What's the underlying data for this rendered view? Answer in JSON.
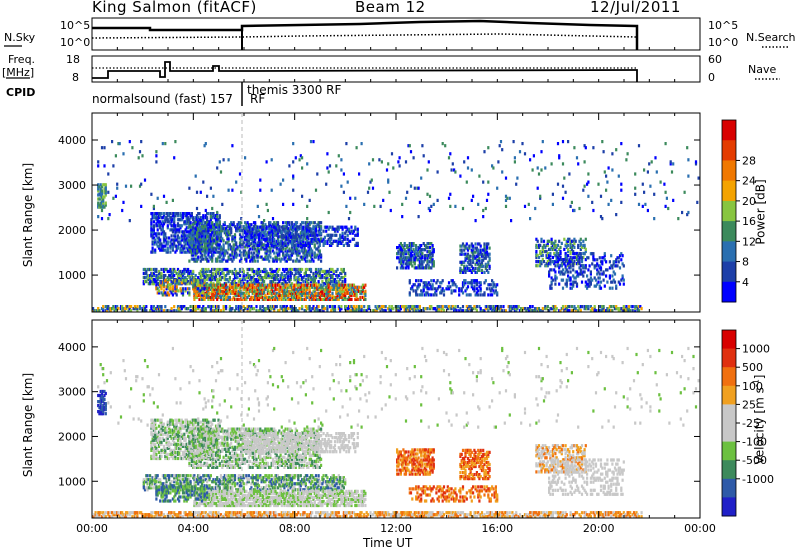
{
  "header": {
    "station": "King Salmon (fitACF)",
    "beam": "Beam 12",
    "date": "12/Jul/2011"
  },
  "side_labels": {
    "nsky": "N.Sky",
    "freq": "Freq.",
    "freq_unit": "[MHz]",
    "cpid": "CPID",
    "nsearch": "N.Search",
    "nave": "Nave"
  },
  "cpid_labels": {
    "first": "normalsound (fast) 157",
    "first_rf": "RF",
    "second": "themis 3300 RF"
  },
  "noise_axis": {
    "ticks": [
      "10^5",
      "10^0"
    ]
  },
  "freq_axis": {
    "left_ticks": [
      "18",
      "8"
    ],
    "right_ticks": [
      "60",
      "0"
    ]
  },
  "chart_data": [
    {
      "type": "heatmap",
      "name": "power",
      "xlabel": "",
      "ylabel": "Slant Range [km]",
      "x_range": [
        0,
        24
      ],
      "y_range": [
        180,
        4600
      ],
      "y_ticks": [
        "1000",
        "2000",
        "3000",
        "4000"
      ],
      "colorbar_label": "Power [dB]",
      "colorbar_ticks": [
        "4",
        "8",
        "12",
        "16",
        "20",
        "24",
        "28"
      ],
      "colorbar_colors": [
        "#0000ff",
        "#1d3fa8",
        "#2a6fb0",
        "#3c8a5c",
        "#88c540",
        "#f4a300",
        "#f07800",
        "#e43c00",
        "#d80000"
      ]
    },
    {
      "type": "heatmap",
      "name": "velocity",
      "xlabel": "Time UT",
      "ylabel": "Slant Range [km]",
      "x_range": [
        0,
        24
      ],
      "x_ticks": [
        "00:00",
        "04:00",
        "08:00",
        "12:00",
        "16:00",
        "20:00",
        "00:00"
      ],
      "y_range": [
        180,
        4600
      ],
      "y_ticks": [
        "1000",
        "2000",
        "3000",
        "4000"
      ],
      "colorbar_label": "Velocity [m s",
      "colorbar_label_sup": "-1",
      "colorbar_label_end": "]",
      "colorbar_ticks": [
        "1000",
        "500",
        "100",
        "25",
        "-25",
        "-100",
        "-500",
        "-1000"
      ],
      "colorbar_colors": [
        "#2020c8",
        "#2e5aa8",
        "#3d8a5c",
        "#6cc040",
        "#c8c8c8",
        "#c8c8c8",
        "#f0a020",
        "#f07010",
        "#e03010",
        "#d80000"
      ]
    }
  ]
}
